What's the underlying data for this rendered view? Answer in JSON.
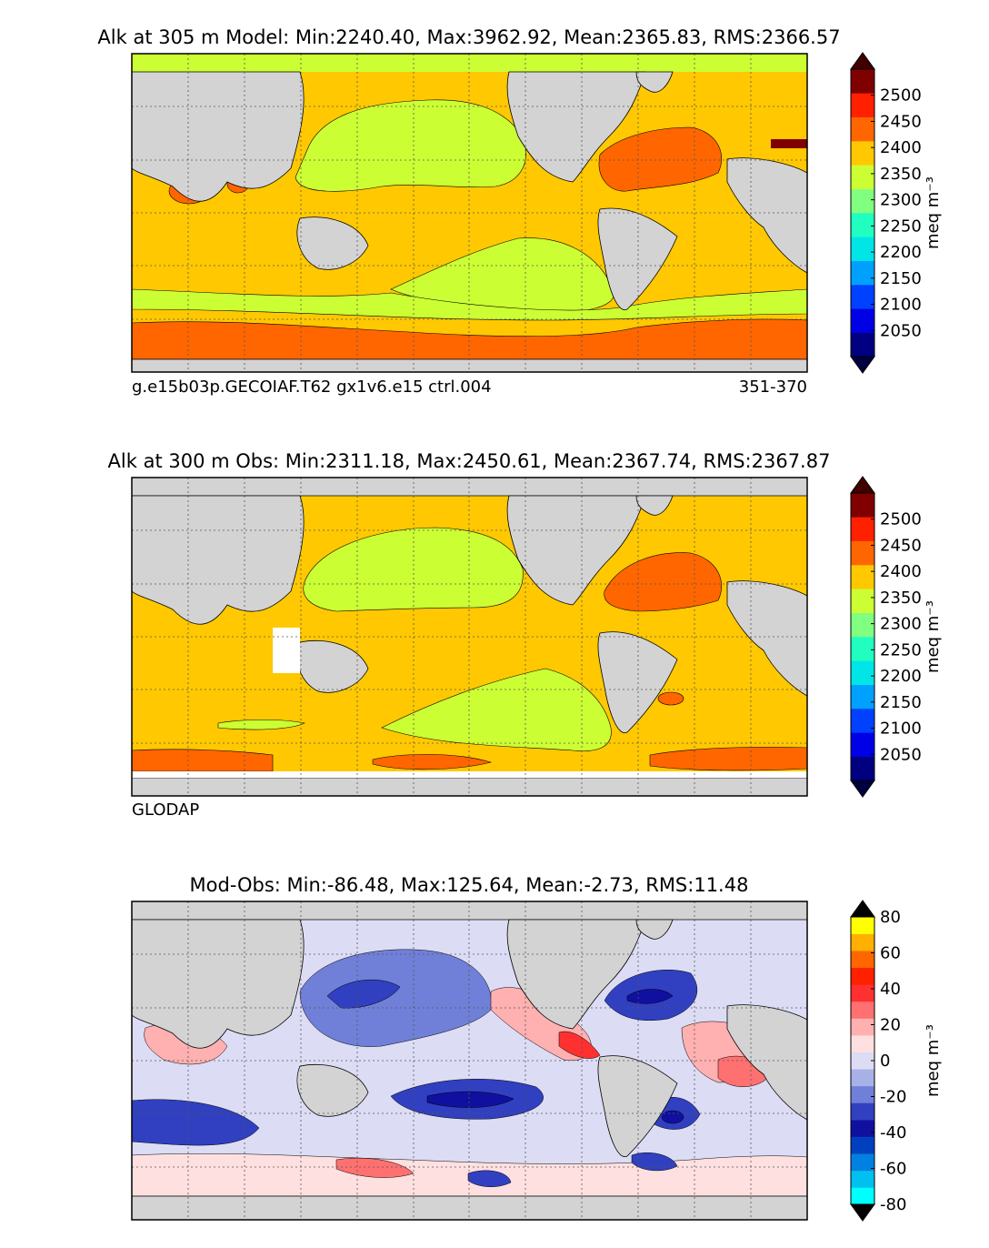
{
  "chart_data": [
    {
      "type": "heatmap",
      "title": "Alk at 305 m Model: Min:2240.40, Max:3962.92, Mean:2365.83, RMS:2366.57",
      "footer_left": "g.e15b03p.GECOIAF.T62 gx1v6.e15 ctrl.004",
      "footer_right": "351-370",
      "colorbar": {
        "label": "meq m⁻³",
        "ticks": [
          "2500",
          "2450",
          "2400",
          "2350",
          "2300",
          "2250",
          "2200",
          "2150",
          "2100",
          "2050"
        ],
        "levels": [
          2000,
          2050,
          2100,
          2150,
          2200,
          2250,
          2300,
          2350,
          2400,
          2450,
          2500,
          2550
        ],
        "colors": [
          "#000080",
          "#0000e6",
          "#0040ff",
          "#00a0ff",
          "#00e6e6",
          "#20ffc0",
          "#80ff80",
          "#ccff33",
          "#ffc800",
          "#ff6600",
          "#ff2000",
          "#800000"
        ],
        "extend": "both",
        "under_color": "#000040",
        "over_color": "#400000"
      }
    },
    {
      "type": "heatmap",
      "title": "Alk at 300 m Obs: Min:2311.18, Max:2450.61, Mean:2367.74, RMS:2367.87",
      "footer_left": "GLODAP",
      "footer_right": "",
      "colorbar": {
        "label": "meq m⁻³",
        "ticks": [
          "2500",
          "2450",
          "2400",
          "2350",
          "2300",
          "2250",
          "2200",
          "2150",
          "2100",
          "2050"
        ],
        "levels": [
          2000,
          2050,
          2100,
          2150,
          2200,
          2250,
          2300,
          2350,
          2400,
          2450,
          2500,
          2550
        ],
        "colors": [
          "#000080",
          "#0000e6",
          "#0040ff",
          "#00a0ff",
          "#00e6e6",
          "#20ffc0",
          "#80ff80",
          "#ccff33",
          "#ffc800",
          "#ff6600",
          "#ff2000",
          "#800000"
        ],
        "extend": "both",
        "under_color": "#000040",
        "over_color": "#400000"
      }
    },
    {
      "type": "heatmap",
      "title": "Mod-Obs: Min:-86.48, Max:125.64, Mean:-2.73, RMS:11.48",
      "footer_left": "",
      "footer_right": "",
      "colorbar": {
        "label": "meq m⁻³",
        "ticks": [
          "80",
          "60",
          "40",
          "20",
          "0",
          "-20",
          "-40",
          "-60",
          "-80"
        ],
        "levels": [
          -80,
          -70,
          -60,
          -50,
          -40,
          -30,
          -20,
          -10,
          0,
          10,
          20,
          30,
          40,
          50,
          60,
          70,
          80
        ],
        "colors": [
          "#00ffff",
          "#00c0f0",
          "#0080e0",
          "#0040c0",
          "#1010a0",
          "#3040c0",
          "#7080d8",
          "#a8b0e8",
          "#dcdcf5",
          "#ffe0e0",
          "#ffb0b0",
          "#ff7070",
          "#ff3030",
          "#ff2000",
          "#ff6600",
          "#ffb000",
          "#ffff00"
        ],
        "extend": "both",
        "under_color": "#000000",
        "over_color": "#000000"
      }
    }
  ],
  "colors": {
    "land": "#d3d3d3",
    "coast": "#000000",
    "missing": "#ffffff"
  }
}
